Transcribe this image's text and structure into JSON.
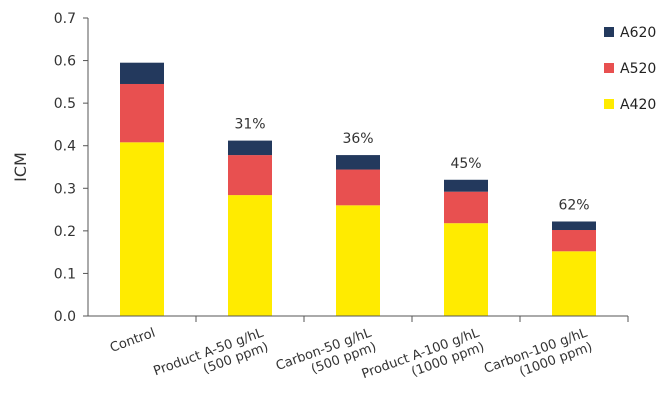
{
  "chart_data": {
    "type": "bar",
    "stacked": true,
    "ylabel": "ICM",
    "ylim": [
      0,
      0.7
    ],
    "yticks": [
      "0.0",
      "0.1",
      "0.2",
      "0.3",
      "0.4",
      "0.5",
      "0.6",
      "0.7"
    ],
    "grid": false,
    "legend_position": "top-right",
    "categories": [
      [
        "Control"
      ],
      [
        "Product A-50 g/hL",
        "(500 ppm)"
      ],
      [
        "Carbon-50 g/hL",
        "(500 ppm)"
      ],
      [
        "Product  A-100 g/hL",
        "(1000 ppm)"
      ],
      [
        "Carbon-100 g/hL",
        "(1000 ppm)"
      ]
    ],
    "series": [
      {
        "name": "A420",
        "color": "#ffeb00",
        "values": [
          0.408,
          0.284,
          0.26,
          0.218,
          0.152
        ]
      },
      {
        "name": "A520",
        "color": "#e85050",
        "values": [
          0.137,
          0.094,
          0.084,
          0.074,
          0.05
        ]
      },
      {
        "name": "A620",
        "color": "#23395d",
        "values": [
          0.05,
          0.034,
          0.034,
          0.028,
          0.02
        ]
      }
    ],
    "annotations": [
      "",
      "31%",
      "36%",
      "45%",
      "62%"
    ]
  }
}
